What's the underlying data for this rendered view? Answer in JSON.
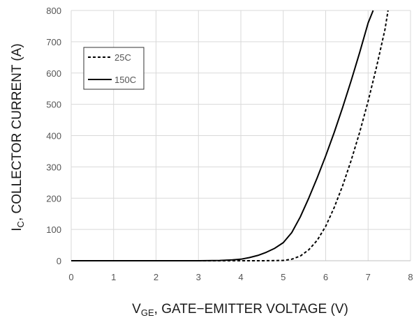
{
  "chart_data": {
    "type": "line",
    "title": "",
    "xlabel_main": "V",
    "xlabel_sub": "GE",
    "xlabel_rest": ", GATE−EMITTER VOLTAGE (V)",
    "ylabel_main": "I",
    "ylabel_sub": "C",
    "ylabel_rest": ", COLLECTOR CURRENT (A)",
    "xlim": [
      0,
      8
    ],
    "ylim": [
      0,
      800
    ],
    "x_ticks": [
      0,
      1,
      2,
      3,
      4,
      5,
      6,
      7,
      8
    ],
    "y_ticks": [
      0,
      100,
      200,
      300,
      400,
      500,
      600,
      700,
      800
    ],
    "grid": true,
    "legend_position": "top-left",
    "series": [
      {
        "name": "25C",
        "style": "dashed",
        "color": "#000000",
        "x": [
          0,
          3.5,
          4.5,
          5.0,
          5.2,
          5.4,
          5.6,
          5.8,
          6.0,
          6.2,
          6.4,
          6.6,
          6.8,
          7.0,
          7.2,
          7.4,
          7.47
        ],
        "y": [
          0,
          0,
          0,
          1,
          5,
          15,
          35,
          65,
          110,
          170,
          240,
          320,
          410,
          510,
          620,
          740,
          800
        ]
      },
      {
        "name": "150C",
        "style": "solid",
        "color": "#000000",
        "x": [
          0,
          3.0,
          3.5,
          3.8,
          4.0,
          4.2,
          4.4,
          4.6,
          4.8,
          5.0,
          5.2,
          5.4,
          5.6,
          5.8,
          6.0,
          6.2,
          6.4,
          6.6,
          6.8,
          7.0,
          7.12
        ],
        "y": [
          0,
          0,
          1,
          3,
          5,
          10,
          17,
          27,
          40,
          58,
          90,
          140,
          200,
          265,
          335,
          410,
          490,
          575,
          665,
          760,
          800
        ]
      }
    ]
  }
}
